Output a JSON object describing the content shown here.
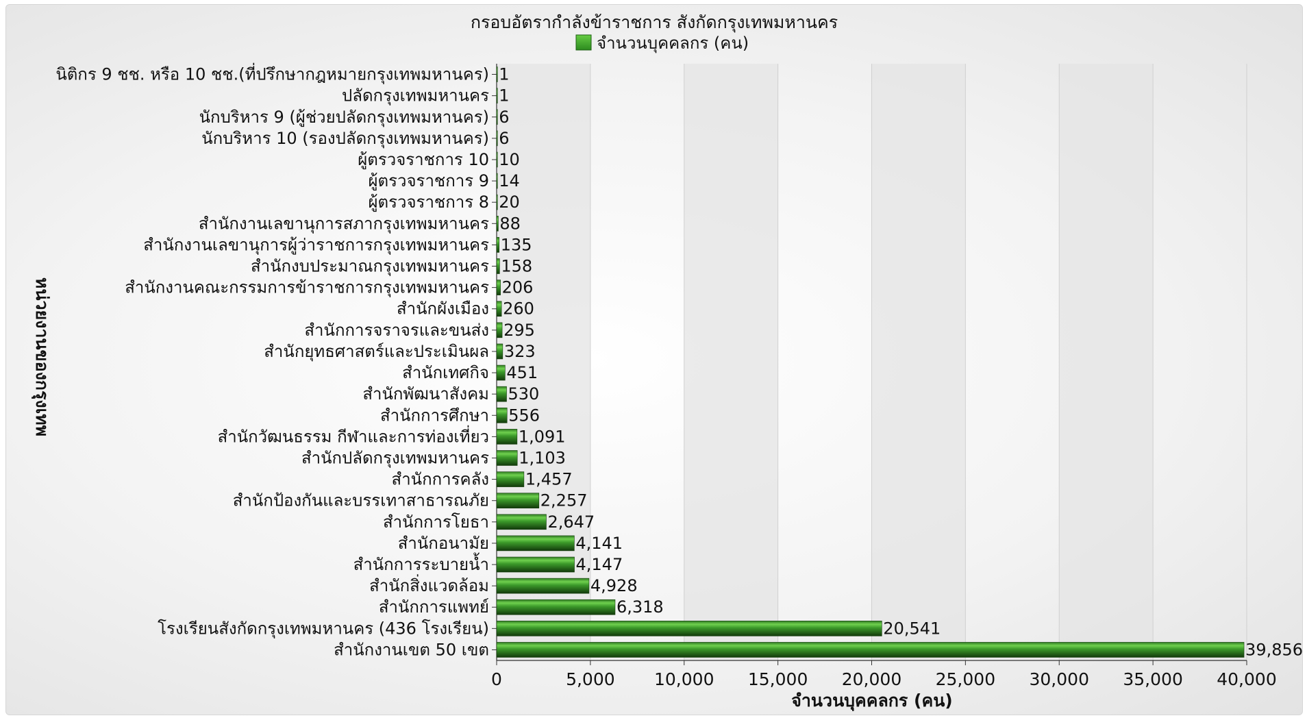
{
  "chart_data": {
    "type": "bar",
    "orientation": "horizontal",
    "title": "กรอบอัตรากำลังข้าราชการ สังกัดกรุงเทพมหานคร",
    "xlabel": "จำนวนบุคคลกร (คน)",
    "ylabel": "หน่วยงานของกรุงเทพ",
    "legend": {
      "position": "top-center",
      "entries": [
        "จำนวนบุคคลกร (คน)"
      ]
    },
    "xlim": [
      0,
      40000
    ],
    "xticks": [
      0,
      5000,
      10000,
      15000,
      20000,
      25000,
      30000,
      35000,
      40000
    ],
    "xtick_labels": [
      "0",
      "5,000",
      "10,000",
      "15,000",
      "20,000",
      "25,000",
      "30,000",
      "35,000",
      "40,000"
    ],
    "grid": true,
    "colors": {
      "bar": "#3c9a2a",
      "bar_dark": "#1c4a12",
      "bar_light": "#6fd04e",
      "band": "#e4e4e4",
      "legend_swatch": "#3fae2f"
    },
    "categories": [
      "นิติกร 9 ชช. หรือ 10 ชช.(ที่ปรึกษากฎหมายกรุงเทพมหานคร)",
      "ปลัดกรุงเทพมหานคร",
      "นักบริหาร 9 (ผู้ช่วยปลัดกรุงเทพมหานคร)",
      "นักบริหาร 10 (รองปลัดกรุงเทพมหานคร)",
      "ผู้ตรวจราชการ 10",
      "ผู้ตรวจราชการ 9",
      "ผู้ตรวจราชการ 8",
      "สำนักงานเลขานุการสภากรุงเทพมหานคร",
      "สำนักงานเลขานุการผู้ว่าราชการกรุงเทพมหานคร",
      "สำนักงบประมาณกรุงเทพมหานคร",
      "สำนักงานคณะกรรมการข้าราชการกรุงเทพมหานคร",
      "สำนักผังเมือง",
      "สำนักการจราจรและขนส่ง",
      "สำนักยุทธศาสตร์และประเมินผล",
      "สำนักเทศกิจ",
      "สำนักพัฒนาสังคม",
      "สำนักการศึกษา",
      "สำนักวัฒนธรรม กีฬาและการท่องเที่ยว",
      "สำนักปลัดกรุงเทพมหานคร",
      "สำนักการคลัง",
      "สำนักป้องกันและบรรเทาสาธารณภัย",
      "สำนักการโยธา",
      "สำนักอนามัย",
      "สำนักการระบายน้ำ",
      "สำนักสิ่งแวดล้อม",
      "สำนักการแพทย์",
      "โรงเรียนสังกัดกรุงเทพมหานคร (436 โรงเรียน)",
      "สำนักงานเขต 50 เขต"
    ],
    "values": [
      1,
      1,
      6,
      6,
      10,
      14,
      20,
      88,
      135,
      158,
      206,
      260,
      295,
      323,
      451,
      530,
      556,
      1091,
      1103,
      1457,
      2257,
      2647,
      4141,
      4147,
      4928,
      6318,
      20541,
      39856
    ],
    "value_labels": [
      "1",
      "1",
      "6",
      "6",
      "10",
      "14",
      "20",
      "88",
      "135",
      "158",
      "206",
      "260",
      "295",
      "323",
      "451",
      "530",
      "556",
      "1,091",
      "1,103",
      "1,457",
      "2,257",
      "2,647",
      "4,141",
      "4,147",
      "4,928",
      "6,318",
      "20,541",
      "39,856"
    ]
  }
}
